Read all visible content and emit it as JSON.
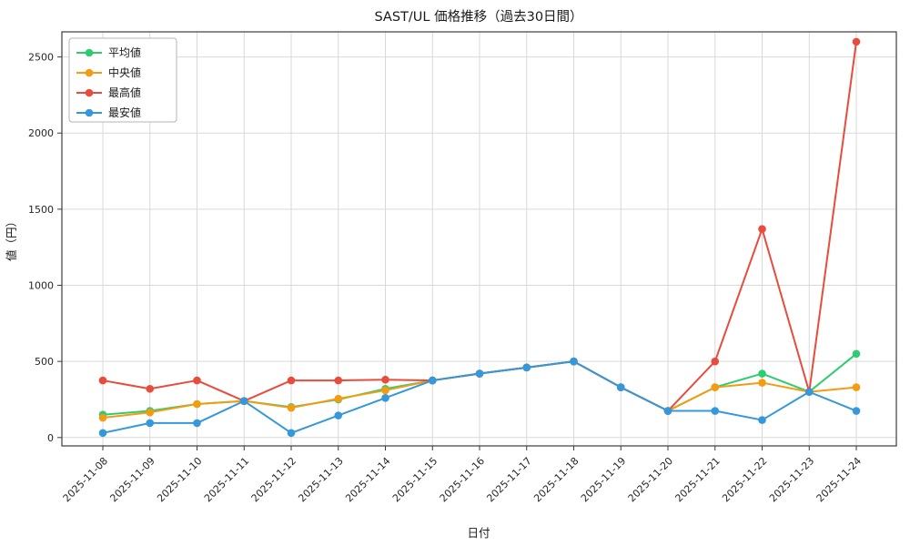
{
  "chart_data": {
    "type": "line",
    "title": "SAST/UL 価格推移（過去30日間）",
    "xlabel": "日付",
    "ylabel": "値（円）",
    "grid": true,
    "legend_position": "upper-left",
    "x": [
      "2025-11-08",
      "2025-11-09",
      "2025-11-10",
      "2025-11-11",
      "2025-11-12",
      "2025-11-13",
      "2025-11-14",
      "2025-11-15",
      "2025-11-16",
      "2025-11-17",
      "2025-11-18",
      "2025-11-19",
      "2025-11-20",
      "2025-11-21",
      "2025-11-22",
      "2025-11-23",
      "2025-11-24"
    ],
    "y_ticks": [
      0,
      500,
      1000,
      1500,
      2000,
      2500
    ],
    "ylim": [
      -55,
      2665
    ],
    "series": [
      {
        "key": "mean",
        "name": "平均値",
        "color": "#2ecc71",
        "values": [
          150,
          175,
          220,
          240,
          200,
          250,
          320,
          375,
          420,
          460,
          500,
          330,
          175,
          330,
          420,
          300,
          550
        ]
      },
      {
        "key": "median",
        "name": "中央値",
        "color": "#f39c12",
        "values": [
          130,
          165,
          220,
          240,
          195,
          255,
          310,
          375,
          420,
          460,
          500,
          330,
          175,
          330,
          360,
          300,
          330
        ]
      },
      {
        "key": "max",
        "name": "最高値",
        "color": "#e74c3c",
        "values": [
          375,
          320,
          375,
          240,
          375,
          375,
          380,
          375,
          420,
          460,
          500,
          330,
          175,
          500,
          1370,
          300,
          2600
        ]
      },
      {
        "key": "min",
        "name": "最安値",
        "color": "#3498db",
        "values": [
          30,
          95,
          95,
          240,
          30,
          145,
          260,
          375,
          420,
          460,
          500,
          330,
          175,
          175,
          115,
          300,
          175
        ]
      }
    ]
  }
}
